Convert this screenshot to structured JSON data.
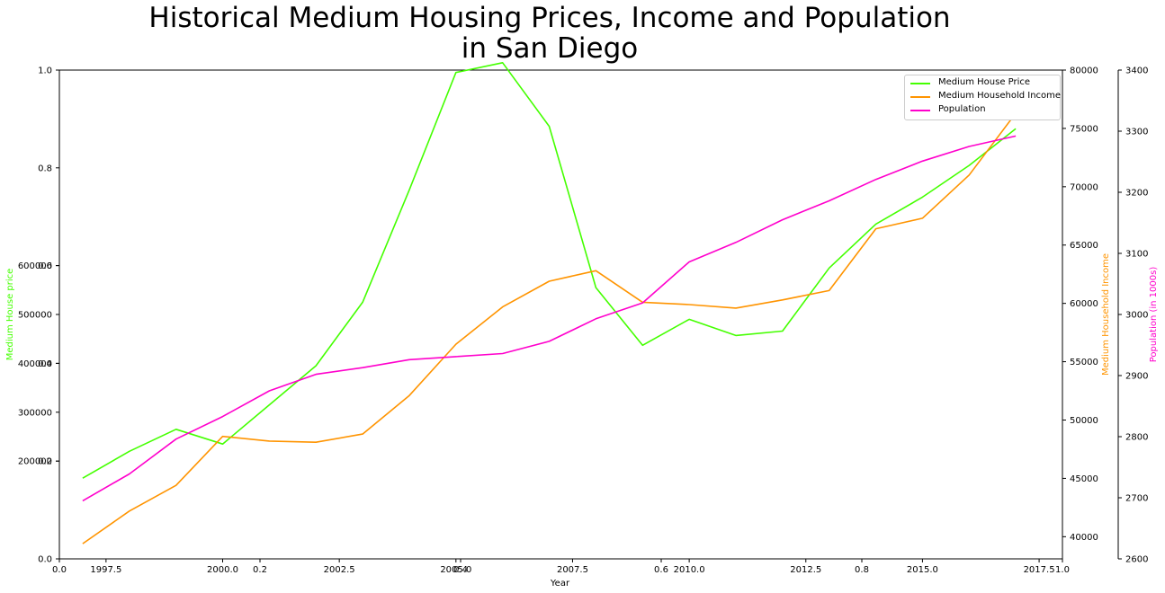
{
  "title_line1": "Historical Medium Housing Prices, Income and Population",
  "title_line2": "in San Diego",
  "colors": {
    "price": "#44ff00",
    "income": "#ff9400",
    "population": "#ff00cc",
    "axis": "#000000"
  },
  "chart_data": {
    "type": "line",
    "xlabel": "Year",
    "x": [
      1997,
      1998,
      1999,
      2000,
      2001,
      2002,
      2003,
      2004,
      2005,
      2006,
      2007,
      2008,
      2009,
      2010,
      2011,
      2012,
      2013,
      2014,
      2015,
      2016,
      2017
    ],
    "series": [
      {
        "name": "Medium House Price",
        "axis": "Medium House price",
        "color": "#44ff00",
        "values": [
          165000,
          220000,
          265000,
          235000,
          315000,
          395000,
          525000,
          755000,
          995000,
          1015000,
          885000,
          555000,
          437000,
          490000,
          457000,
          466000,
          595000,
          685000,
          740000,
          805000,
          880000
        ]
      },
      {
        "name": "Medium Household Income",
        "axis": "Medium Household Income",
        "color": "#ff9400",
        "values": [
          39400,
          42200,
          44400,
          48600,
          48200,
          48100,
          48800,
          52100,
          56500,
          59700,
          61900,
          62800,
          60100,
          59900,
          59600,
          60300,
          61100,
          66400,
          67300,
          71000,
          76300
        ]
      },
      {
        "name": "Population",
        "axis": "Population (in 1000s)",
        "color": "#ff00cc",
        "values": [
          2695,
          2739,
          2796,
          2833,
          2875,
          2902,
          2913,
          2926,
          2931,
          2936,
          2956,
          2993,
          3019,
          3086,
          3118,
          3155,
          3186,
          3221,
          3251,
          3275,
          3292
        ]
      }
    ],
    "axes": {
      "top_x": {
        "range": [
          0.0,
          1.0
        ],
        "ticks": [
          0.0,
          0.2,
          0.4,
          0.6,
          0.8,
          1.0
        ],
        "tick_labels": [
          "0.0",
          "0.2",
          "0.4",
          "0.6",
          "0.8",
          "1.0"
        ]
      },
      "bottom_x": {
        "range": [
          1996.5,
          2018.0
        ],
        "ticks": [
          1997.5,
          2000.0,
          2002.5,
          2005.0,
          2007.5,
          2010.0,
          2012.5,
          2015.0,
          2017.5
        ],
        "tick_labels": [
          "1997.5",
          "2000.0",
          "2002.5",
          "2005.0",
          "2007.5",
          "2010.0",
          "2012.5",
          "2015.0",
          "2017.5"
        ]
      },
      "left_unit": {
        "range": [
          0.0,
          1.0
        ],
        "ticks": [
          0.0,
          0.2,
          0.4,
          0.6,
          0.8,
          1.0
        ],
        "tick_labels": [
          "0.0",
          "0.2",
          "0.4",
          "0.6",
          "0.8",
          "1.0"
        ]
      },
      "left_price": {
        "label": "Medium House price",
        "range": [
          0,
          1000000
        ],
        "ticks": [
          200000,
          300000,
          400000,
          500000,
          600000
        ],
        "tick_labels": [
          "200000",
          "300000",
          "400000",
          "500000",
          "600000"
        ]
      },
      "right_income": {
        "label": "Medium Household Income",
        "range": [
          38100,
          80000
        ],
        "ticks": [
          40000,
          45000,
          50000,
          55000,
          60000,
          65000,
          70000,
          75000,
          80000
        ],
        "tick_labels": [
          "40000",
          "45000",
          "50000",
          "55000",
          "60000",
          "65000",
          "70000",
          "75000",
          "80000"
        ]
      },
      "right_population": {
        "label": "Population (in 1000s)",
        "range": [
          2600,
          3400
        ],
        "ticks": [
          2600,
          2700,
          2800,
          2900,
          3000,
          3100,
          3200,
          3300,
          3400
        ],
        "tick_labels": [
          "2600",
          "2700",
          "2800",
          "2900",
          "3000",
          "3100",
          "3200",
          "3300",
          "3400"
        ]
      }
    },
    "legend": {
      "position": "top-right",
      "entries": [
        "Medium House Price",
        "Medium Household Income",
        "Population"
      ]
    },
    "grid": false
  }
}
